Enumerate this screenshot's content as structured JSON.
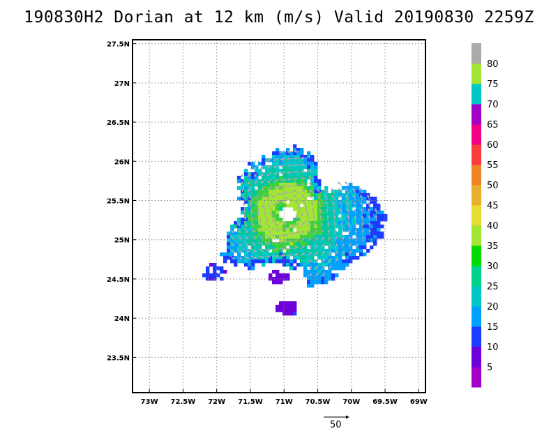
{
  "title": "190830H2 Dorian at 12 km (m/s) Valid 20190830 2259Z",
  "chart_data": {
    "type": "heatmap",
    "title": "190830H2 Dorian at 12 km (m/s) Valid 20190830 2259Z",
    "x_ticks": [
      "73W",
      "72.5W",
      "72W",
      "71.5W",
      "71W",
      "70.5W",
      "70W",
      "69.5W",
      "69W"
    ],
    "x_values": [
      -73,
      -72.5,
      -72,
      -71.5,
      -71,
      -70.5,
      -70,
      -69.5,
      -69
    ],
    "y_ticks": [
      "23.5N",
      "24N",
      "24.5N",
      "25N",
      "25.5N",
      "26N",
      "26.5N",
      "27N",
      "27.5N"
    ],
    "y_values": [
      23.5,
      24,
      24.5,
      25,
      25.5,
      26,
      26.5,
      27,
      27.5
    ],
    "xlim": [
      -73.25,
      -68.9
    ],
    "ylim": [
      23.05,
      27.55
    ],
    "grid": true,
    "colorbar": {
      "labels": [
        "5",
        "10",
        "15",
        "20",
        "25",
        "30",
        "35",
        "40",
        "45",
        "50",
        "55",
        "60",
        "65",
        "70",
        "75",
        "80"
      ],
      "colors": [
        "#a000c8",
        "#6e00dc",
        "#1e3cff",
        "#00a0ff",
        "#00c8c8",
        "#00d28c",
        "#00dc00",
        "#a0e632",
        "#e6dc32",
        "#e6af2d",
        "#f08228",
        "#fa3c3c",
        "#f00082",
        "#a000c8",
        "#00c8c8",
        "#a0e632",
        "#aaaaaa"
      ]
    },
    "storm_center": {
      "lon": -70.98,
      "lat": 25.35
    },
    "vector_reference": {
      "label": "50"
    }
  }
}
